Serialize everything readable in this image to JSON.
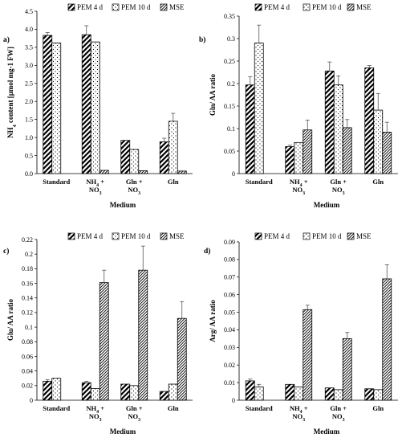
{
  "legend": [
    {
      "name": "PEM 4 d",
      "pattern": "diag"
    },
    {
      "name": "PEM 10 d",
      "pattern": "dots"
    },
    {
      "name": "MSE",
      "pattern": "diag-dense"
    }
  ],
  "chart_data": [
    {
      "type": "bar",
      "panel_label": "a)",
      "ylabel": "NH4 content [µmol mg-1 FW]",
      "xlabel": "Medium",
      "ylim": [
        0,
        4.5
      ],
      "yticks": [
        "0.0",
        "0.5",
        "1.0",
        "1.5",
        "2.0",
        "2.5",
        "3.0",
        "3.5",
        "4.0",
        "4.5"
      ],
      "categories": [
        "Standard",
        "NH4 + NO3",
        "Gln + NO3",
        "Gln"
      ],
      "series": [
        {
          "name": "PEM 4 d",
          "values": [
            3.83,
            3.85,
            0.92,
            0.88
          ],
          "errors": [
            0.08,
            0.25,
            0.0,
            0.1
          ]
        },
        {
          "name": "PEM 10 d",
          "values": [
            3.62,
            3.65,
            0.67,
            1.45
          ],
          "errors": [
            0.0,
            0.0,
            0.0,
            0.22
          ]
        },
        {
          "name": "MSE",
          "values": [
            null,
            0.09,
            0.08,
            0.07
          ],
          "errors": [
            0,
            0,
            0,
            0
          ]
        }
      ]
    },
    {
      "type": "bar",
      "panel_label": "b)",
      "ylabel": "Gln/ AA ratio",
      "xlabel": "Medium",
      "ylim": [
        0,
        0.35
      ],
      "yticks": [
        "0",
        "0.05",
        "0.1",
        "0.15",
        "0.2",
        "0.25",
        "0.3",
        "0.35"
      ],
      "categories": [
        "Standard",
        "NH4 + NO3",
        "Gln + NO3",
        "Gln"
      ],
      "series": [
        {
          "name": "PEM 4 d",
          "values": [
            0.197,
            0.06,
            0.228,
            0.235
          ],
          "errors": [
            0.018,
            0.003,
            0.02,
            0.005
          ]
        },
        {
          "name": "PEM 10 d",
          "values": [
            0.29,
            0.069,
            0.197,
            0.141
          ],
          "errors": [
            0.04,
            0.0,
            0.02,
            0.037
          ]
        },
        {
          "name": "MSE",
          "values": [
            null,
            0.097,
            0.102,
            0.092
          ],
          "errors": [
            0,
            0.022,
            0.018,
            0.022
          ]
        }
      ]
    },
    {
      "type": "bar",
      "panel_label": "c)",
      "ylabel": "Glu/ AA ratio",
      "xlabel": "Medium",
      "ylim": [
        0,
        0.22
      ],
      "yticks": [
        "0",
        "0.02",
        "0.04",
        "0.06",
        "0.08",
        "0.1",
        "0.12",
        "0.14",
        "0.16",
        "0.18",
        "0.2",
        "0.22"
      ],
      "categories": [
        "Standard",
        "NH4 + NO3",
        "Gln + NO3",
        "Gln"
      ],
      "series": [
        {
          "name": "PEM 4 d",
          "values": [
            0.026,
            0.024,
            0.022,
            0.012
          ],
          "errors": [
            0.002,
            0.002,
            0.0,
            0.0
          ]
        },
        {
          "name": "PEM 10 d",
          "values": [
            0.03,
            0.016,
            0.02,
            0.022
          ],
          "errors": [
            0.0,
            0.0,
            0.0,
            0.0
          ]
        },
        {
          "name": "MSE",
          "values": [
            null,
            0.161,
            0.178,
            0.112
          ],
          "errors": [
            0,
            0.017,
            0.033,
            0.023
          ]
        }
      ]
    },
    {
      "type": "bar",
      "panel_label": "d)",
      "ylabel": "Arg/ AA ratio",
      "xlabel": "Medium",
      "ylim": [
        0,
        0.09
      ],
      "yticks": [
        "0",
        "0.01",
        "0.02",
        "0.03",
        "0.04",
        "0.05",
        "0.06",
        "0.07",
        "0.08",
        "0.09"
      ],
      "categories": [
        "Standard",
        "NH4 + NO3",
        "Gln + NO3",
        "Gln"
      ],
      "series": [
        {
          "name": "PEM 4 d",
          "values": [
            0.011,
            0.009,
            0.007,
            0.0065
          ],
          "errors": [
            0.001,
            0.0,
            0.0,
            0.0
          ]
        },
        {
          "name": "PEM 10 d",
          "values": [
            0.0075,
            0.0075,
            0.006,
            0.006
          ],
          "errors": [
            0.0015,
            0.0,
            0.0,
            0.0
          ]
        },
        {
          "name": "MSE",
          "values": [
            null,
            0.0515,
            0.035,
            0.069
          ],
          "errors": [
            0,
            0.0025,
            0.0035,
            0.008
          ]
        }
      ]
    }
  ]
}
